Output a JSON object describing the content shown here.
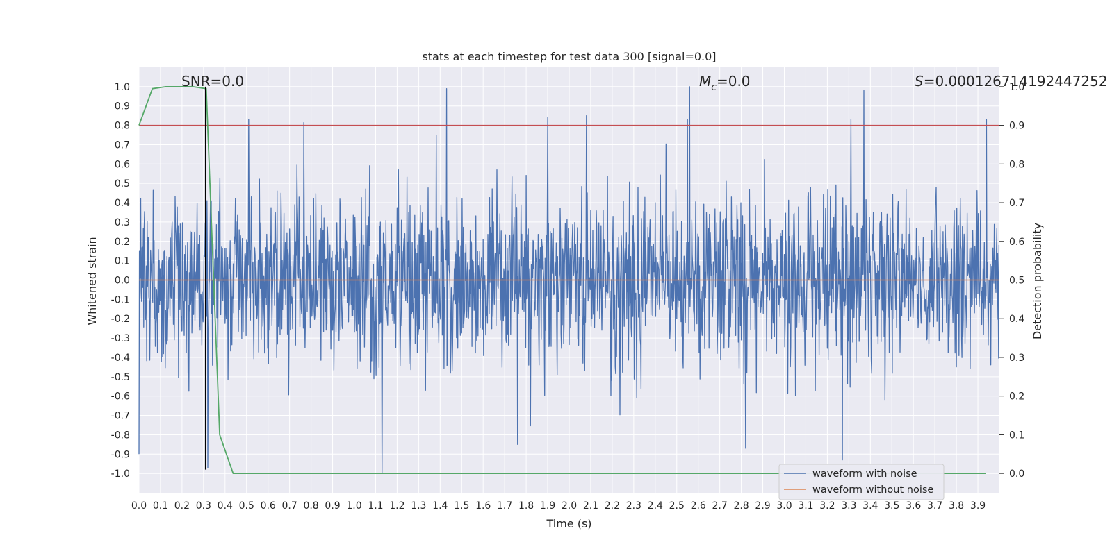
{
  "chart_data": {
    "type": "line",
    "title": "stats at each timestep for test data 300 [signal=0.0]",
    "xlabel": "Time (s)",
    "ylabel": "Whitened strain",
    "y2label": "Detection probability",
    "xlim": [
      0.0,
      4.0
    ],
    "ylim": [
      -1.1,
      1.1
    ],
    "y2lim": [
      -0.05,
      1.05
    ],
    "x_ticks": [
      "0.0",
      "0.1",
      "0.2",
      "0.3",
      "0.4",
      "0.5",
      "0.6",
      "0.7",
      "0.8",
      "0.9",
      "1.0",
      "1.1",
      "1.2",
      "1.3",
      "1.4",
      "1.5",
      "1.6",
      "1.7",
      "1.8",
      "1.9",
      "2.0",
      "2.1",
      "2.2",
      "2.3",
      "2.4",
      "2.5",
      "2.6",
      "2.7",
      "2.8",
      "2.9",
      "3.0",
      "3.1",
      "3.2",
      "3.3",
      "3.4",
      "3.5",
      "3.6",
      "3.7",
      "3.8",
      "3.9"
    ],
    "y_ticks": [
      "1.0",
      "0.9",
      "0.8",
      "0.7",
      "0.6",
      "0.5",
      "0.4",
      "0.3",
      "0.2",
      "0.1",
      "0.0",
      "-0.1",
      "-0.2",
      "-0.3",
      "-0.4",
      "-0.5",
      "-0.6",
      "-0.7",
      "-0.8",
      "-0.9",
      "-1.0"
    ],
    "y2_ticks": [
      "1.0",
      "0.9",
      "0.8",
      "0.7",
      "0.6",
      "0.5",
      "0.4",
      "0.3",
      "0.2",
      "0.1",
      "0.0"
    ],
    "annotations": {
      "snr": "SNR=0.0",
      "mc_symbol": "M",
      "mc_subscript": "c",
      "mc_value": "=0.0",
      "s_symbol": "S",
      "s_value": "=0.000126714192447252"
    },
    "legend": {
      "position": "lower right",
      "entries": [
        "waveform with noise",
        "waveform without noise"
      ]
    },
    "colors": {
      "noise": "#4c72b0",
      "clean": "#dd8452",
      "probability": "#55a868",
      "threshold": "#c44e52",
      "marker": "#000000",
      "plot_bg": "#eaeaf2",
      "grid": "#ffffff"
    },
    "noise_series": {
      "name": "waveform with noise",
      "sample_step_s": 0.002,
      "amplitude_sigma": 0.22,
      "clip": [
        -1.0,
        1.0
      ],
      "peaks": [
        {
          "t": 0.51,
          "v": 0.83
        },
        {
          "t": 1.13,
          "v": -1.0
        },
        {
          "t": 1.43,
          "v": 0.99
        },
        {
          "t": 1.9,
          "v": 0.84
        },
        {
          "t": 2.08,
          "v": 0.85
        },
        {
          "t": 2.56,
          "v": 1.0
        },
        {
          "t": 2.55,
          "v": 0.83
        },
        {
          "t": 3.27,
          "v": -0.93
        },
        {
          "t": 3.37,
          "v": 0.98
        },
        {
          "t": 3.31,
          "v": 0.83
        },
        {
          "t": 3.94,
          "v": 0.83
        },
        {
          "t": 2.82,
          "v": -0.87
        },
        {
          "t": 1.76,
          "v": -0.85
        },
        {
          "t": 0.32,
          "v": -0.97
        },
        {
          "t": 0.0,
          "v": -0.9
        }
      ]
    },
    "clean_series": {
      "name": "waveform without noise",
      "x": [
        0.0,
        4.0
      ],
      "y": [
        0.0,
        0.0
      ]
    },
    "probability_series": {
      "name": "detection probability",
      "x": [
        0.0,
        0.0625,
        0.125,
        0.1875,
        0.25,
        0.3125,
        0.375,
        0.4375,
        3.9375
      ],
      "y": [
        0.9,
        0.995,
        1.0,
        1.0,
        1.0,
        0.995,
        0.1,
        0.0,
        0.0
      ]
    },
    "threshold_line": {
      "value": 0.9,
      "axis": "y2"
    },
    "marker_line": {
      "x": 0.31,
      "y_range": [
        -0.98,
        1.0
      ]
    }
  }
}
